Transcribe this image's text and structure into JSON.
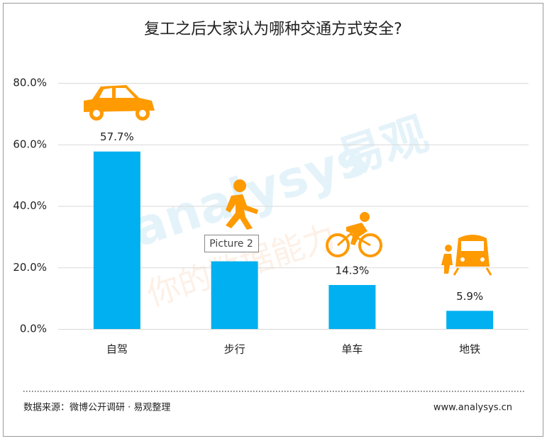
{
  "chart_data": {
    "type": "bar",
    "title": "复工之后大家认为哪种交通方式安全?",
    "categories": [
      "自驾",
      "步行",
      "单车",
      "地铁"
    ],
    "values": [
      57.7,
      22.0,
      14.3,
      5.9
    ],
    "value_labels": [
      "57.7%",
      null,
      "14.3%",
      "5.9%"
    ],
    "color": "#00b0f0",
    "ylim": [
      0,
      80
    ],
    "yticks": [
      {
        "value": 0,
        "label": "0.0%"
      },
      {
        "value": 20,
        "label": "20.0%"
      },
      {
        "value": 40,
        "label": "40.0%"
      },
      {
        "value": 60,
        "label": "60.0%"
      },
      {
        "value": 80,
        "label": "80.0%"
      }
    ],
    "grid": true
  },
  "tooltip": "Picture 2",
  "watermark": {
    "logo": "analysys",
    "brand": "易观",
    "slogan": "你的数据能力"
  },
  "footer": {
    "source": "数据来源：微博公开调研 · 易观整理",
    "url": "www.analysys.cn"
  }
}
